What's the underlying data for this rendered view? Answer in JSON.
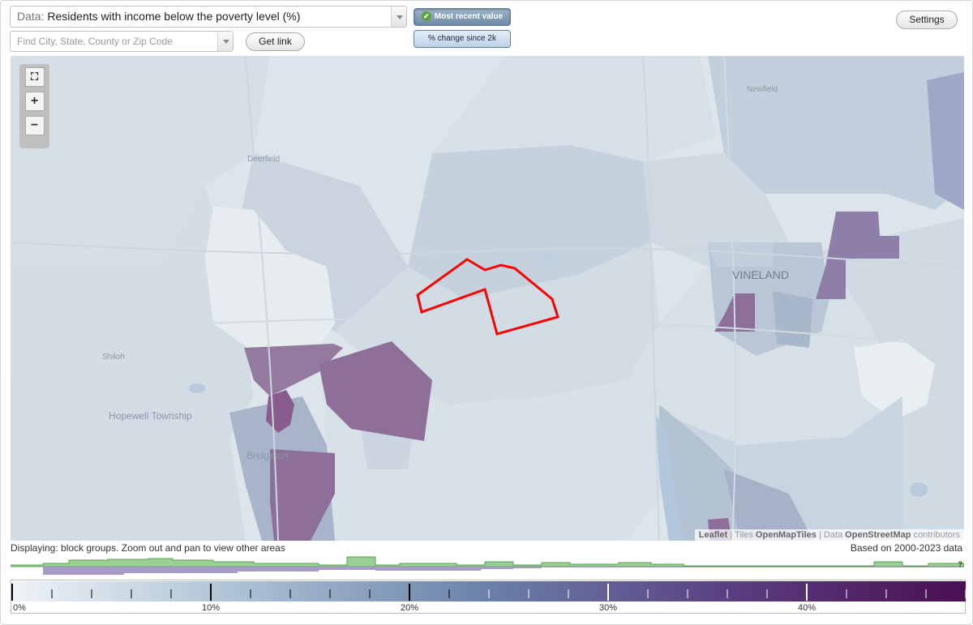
{
  "header": {
    "data_prefix": "Data:",
    "data_value": "Residents with income below the poverty level (%)",
    "search_placeholder": "Find City, State, County or Zip Code",
    "get_link_label": "Get link",
    "settings_label": "Settings",
    "mode_recent_label": "Most recent value",
    "mode_change_label": "% change since 2k"
  },
  "map": {
    "places": {
      "newfield": "Newfield",
      "deerfield": "Deerfield",
      "vineland": "VINELAND",
      "shiloh": "Shiloh",
      "hopewell": "Hopewell Township",
      "bridgeton": "Bridgeton"
    },
    "zoom": {
      "fullscreen": "⛶",
      "zoom_in": "+",
      "zoom_out": "−"
    },
    "attribution": {
      "leaflet": "Leaflet",
      "sep1": " | Tiles ",
      "tiles": "OpenMapTiles",
      "sep2": " | Data ",
      "data": "OpenStreetMap",
      "contributors": " contributors"
    },
    "colors": {
      "low": "#dde5ea",
      "mid": "#b4c3d3",
      "high": "#8d6f9a",
      "highlight_outline": "#ff0000"
    }
  },
  "footer": {
    "displaying": "Displaying: block groups. Zoom out and pan to view other areas",
    "based_on": "Based on 2000-2023 data",
    "unknown_marker": "?"
  },
  "legend": {
    "min": 0,
    "max": 48,
    "tick_labels": [
      "0%",
      "10%",
      "20%",
      "30%",
      "40%"
    ],
    "gradient": [
      "#eef3f6",
      "#a9bfd3",
      "#6a80a8",
      "#5a3f82",
      "#4a0f52"
    ]
  }
}
